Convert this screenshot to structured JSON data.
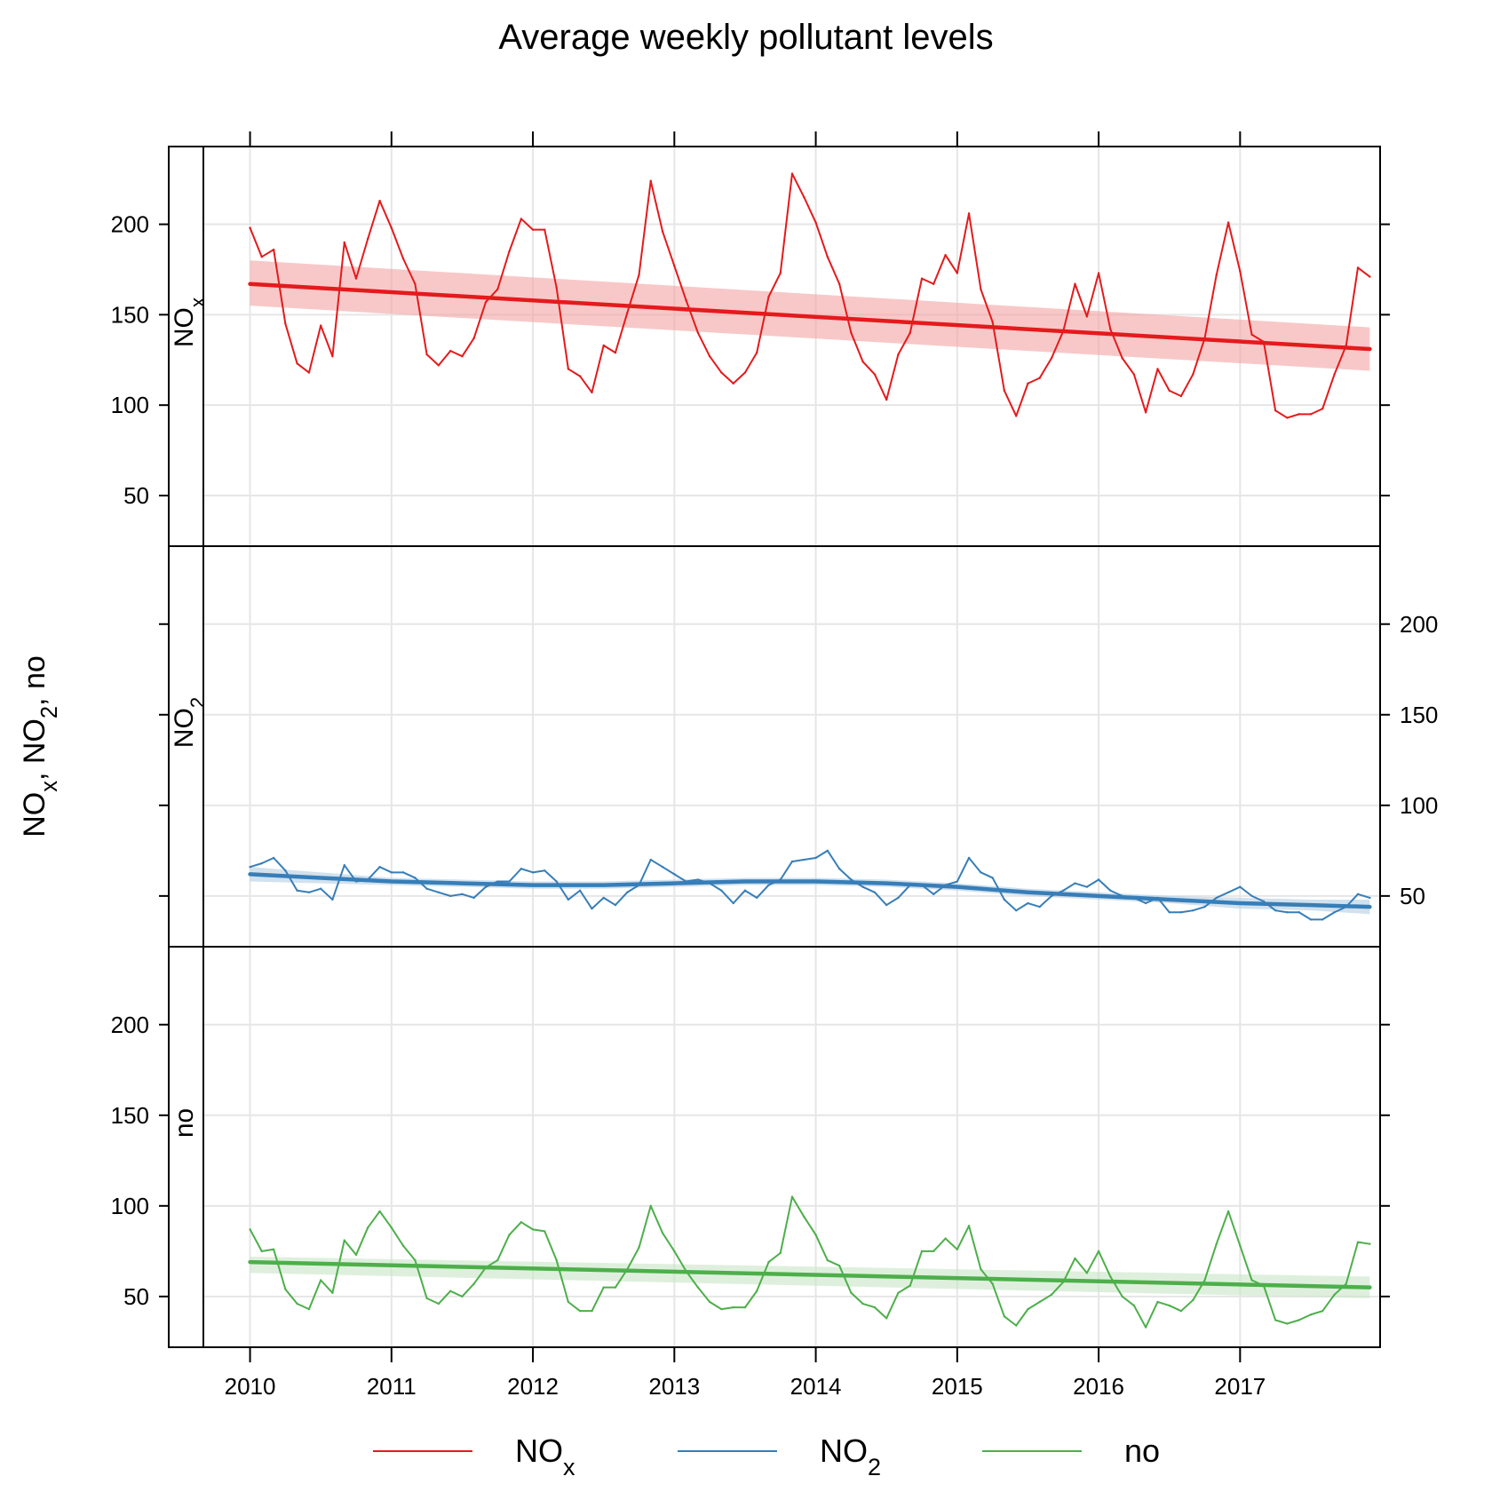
{
  "chart_data": {
    "type": "line",
    "title": "Average weekly pollutant levels",
    "ylabel": {
      "text": "NO{x}, NO{2}, no"
    },
    "xlim": [
      2009.67,
      2017.99
    ],
    "ylim": [
      22,
      243
    ],
    "x_ticks": [
      2010,
      2011,
      2012,
      2013,
      2014,
      2015,
      2016,
      2017
    ],
    "y_ticks": [
      50,
      100,
      150,
      200
    ],
    "grid": true,
    "legend_position": "bottom",
    "panels": [
      {
        "key": "nox",
        "strip_label": {
          "main": "NO",
          "sub": "x"
        },
        "y_axis_side": "left",
        "series": "nox"
      },
      {
        "key": "no2",
        "strip_label": {
          "main": "NO",
          "sub": "2"
        },
        "y_axis_side": "right",
        "series": "no2"
      },
      {
        "key": "no",
        "strip_label": {
          "main": "no",
          "sub": ""
        },
        "y_axis_side": "left",
        "series": "no"
      }
    ],
    "series": [
      {
        "key": "nox",
        "name": "NO",
        "name_sub": "x",
        "color": "#e41a1c",
        "band_color": "#f4a3a4",
        "x": [
          2010.0,
          2010.083,
          2010.167,
          2010.25,
          2010.333,
          2010.417,
          2010.5,
          2010.583,
          2010.667,
          2010.75,
          2010.833,
          2010.917,
          2011.0,
          2011.083,
          2011.167,
          2011.25,
          2011.333,
          2011.417,
          2011.5,
          2011.583,
          2011.667,
          2011.75,
          2011.833,
          2011.917,
          2012.0,
          2012.083,
          2012.167,
          2012.25,
          2012.333,
          2012.417,
          2012.5,
          2012.583,
          2012.667,
          2012.75,
          2012.833,
          2012.917,
          2013.0,
          2013.083,
          2013.167,
          2013.25,
          2013.333,
          2013.417,
          2013.5,
          2013.583,
          2013.667,
          2013.75,
          2013.833,
          2013.917,
          2014.0,
          2014.083,
          2014.167,
          2014.25,
          2014.333,
          2014.417,
          2014.5,
          2014.583,
          2014.667,
          2014.75,
          2014.833,
          2014.917,
          2015.0,
          2015.083,
          2015.167,
          2015.25,
          2015.333,
          2015.417,
          2015.5,
          2015.583,
          2015.667,
          2015.75,
          2015.833,
          2015.917,
          2016.0,
          2016.083,
          2016.167,
          2016.25,
          2016.333,
          2016.417,
          2016.5,
          2016.583,
          2016.667,
          2016.75,
          2016.833,
          2016.917,
          2017.0,
          2017.083,
          2017.167,
          2017.25,
          2017.333,
          2017.417,
          2017.5,
          2017.583,
          2017.667,
          2017.75,
          2017.833,
          2017.917
        ],
        "values": [
          198,
          182,
          186,
          145,
          123,
          118,
          144,
          127,
          190,
          170,
          192,
          213,
          198,
          181,
          167,
          128,
          122,
          130,
          127,
          137,
          157,
          164,
          185,
          203,
          197,
          197,
          165,
          120,
          116,
          107,
          133,
          129,
          151,
          172,
          224,
          196,
          177,
          158,
          140,
          127,
          118,
          112,
          118,
          129,
          160,
          173,
          228,
          215,
          201,
          182,
          167,
          140,
          124,
          117,
          103,
          128,
          140,
          170,
          167,
          183,
          173,
          206,
          164,
          146,
          108,
          94,
          112,
          115,
          126,
          141,
          167,
          149,
          173,
          142,
          126,
          117,
          96,
          120,
          108,
          105,
          117,
          137,
          172,
          201,
          174,
          139,
          135,
          97,
          93,
          95,
          95,
          98,
          117,
          133,
          176,
          171
        ],
        "trend": {
          "x": [
            2010.0,
            2017.917
          ],
          "values": [
            167,
            131
          ]
        },
        "band": {
          "x": [
            2010.0,
            2017.917
          ],
          "lower": [
            155,
            119
          ],
          "upper": [
            180,
            143
          ]
        }
      },
      {
        "key": "no2",
        "name": "NO",
        "name_sub": "2",
        "color": "#377eb8",
        "band_color": "#b3cde3",
        "x": [
          2010.0,
          2010.083,
          2010.167,
          2010.25,
          2010.333,
          2010.417,
          2010.5,
          2010.583,
          2010.667,
          2010.75,
          2010.833,
          2010.917,
          2011.0,
          2011.083,
          2011.167,
          2011.25,
          2011.333,
          2011.417,
          2011.5,
          2011.583,
          2011.667,
          2011.75,
          2011.833,
          2011.917,
          2012.0,
          2012.083,
          2012.167,
          2012.25,
          2012.333,
          2012.417,
          2012.5,
          2012.583,
          2012.667,
          2012.75,
          2012.833,
          2012.917,
          2013.0,
          2013.083,
          2013.167,
          2013.25,
          2013.333,
          2013.417,
          2013.5,
          2013.583,
          2013.667,
          2013.75,
          2013.833,
          2013.917,
          2014.0,
          2014.083,
          2014.167,
          2014.25,
          2014.333,
          2014.417,
          2014.5,
          2014.583,
          2014.667,
          2014.75,
          2014.833,
          2014.917,
          2015.0,
          2015.083,
          2015.167,
          2015.25,
          2015.333,
          2015.417,
          2015.5,
          2015.583,
          2015.667,
          2015.75,
          2015.833,
          2015.917,
          2016.0,
          2016.083,
          2016.167,
          2016.25,
          2016.333,
          2016.417,
          2016.5,
          2016.583,
          2016.667,
          2016.75,
          2016.833,
          2016.917,
          2017.0,
          2017.083,
          2017.167,
          2017.25,
          2017.333,
          2017.417,
          2017.5,
          2017.583,
          2017.667,
          2017.75,
          2017.833,
          2017.917
        ],
        "values": [
          66,
          68,
          71,
          64,
          53,
          52,
          54,
          48,
          67,
          58,
          59,
          66,
          63,
          63,
          60,
          54,
          52,
          50,
          51,
          49,
          55,
          58,
          58,
          65,
          63,
          64,
          58,
          48,
          53,
          43,
          49,
          45,
          52,
          56,
          70,
          66,
          62,
          58,
          59,
          57,
          53,
          46,
          53,
          49,
          56,
          59,
          69,
          70,
          71,
          75,
          65,
          59,
          55,
          52,
          45,
          49,
          56,
          56,
          51,
          56,
          58,
          71,
          63,
          60,
          48,
          42,
          46,
          44,
          50,
          53,
          57,
          55,
          59,
          53,
          50,
          49,
          46,
          49,
          41,
          41,
          42,
          44,
          49,
          52,
          55,
          50,
          47,
          42,
          41,
          41,
          37,
          37,
          41,
          44,
          51,
          49
        ],
        "trend": {
          "x": [
            2010.0,
            2010.5,
            2011.0,
            2011.5,
            2012.0,
            2012.5,
            2013.0,
            2013.5,
            2014.0,
            2014.5,
            2015.0,
            2015.5,
            2016.0,
            2016.5,
            2017.0,
            2017.5,
            2017.917
          ],
          "values": [
            62,
            60,
            58,
            57,
            56,
            56,
            57,
            58,
            58,
            57,
            55,
            52,
            50,
            48,
            46,
            45,
            44
          ]
        },
        "band": {
          "x": [
            2010.0,
            2010.5,
            2011.0,
            2011.5,
            2012.0,
            2012.5,
            2013.0,
            2013.5,
            2014.0,
            2014.5,
            2015.0,
            2015.5,
            2016.0,
            2016.5,
            2017.0,
            2017.5,
            2017.917
          ],
          "lower": [
            58,
            57,
            56,
            55,
            54,
            54,
            55,
            56,
            56,
            55,
            53,
            50,
            48,
            46,
            43,
            42,
            40
          ],
          "upper": [
            66,
            63,
            60,
            59,
            58,
            58,
            59,
            60,
            60,
            59,
            57,
            54,
            52,
            50,
            49,
            48,
            48
          ]
        }
      },
      {
        "key": "no",
        "name": "no",
        "name_sub": "",
        "color": "#4daf4a",
        "band_color": "#c8e6c6",
        "x": [
          2010.0,
          2010.083,
          2010.167,
          2010.25,
          2010.333,
          2010.417,
          2010.5,
          2010.583,
          2010.667,
          2010.75,
          2010.833,
          2010.917,
          2011.0,
          2011.083,
          2011.167,
          2011.25,
          2011.333,
          2011.417,
          2011.5,
          2011.583,
          2011.667,
          2011.75,
          2011.833,
          2011.917,
          2012.0,
          2012.083,
          2012.167,
          2012.25,
          2012.333,
          2012.417,
          2012.5,
          2012.583,
          2012.667,
          2012.75,
          2012.833,
          2012.917,
          2013.0,
          2013.083,
          2013.167,
          2013.25,
          2013.333,
          2013.417,
          2013.5,
          2013.583,
          2013.667,
          2013.75,
          2013.833,
          2013.917,
          2014.0,
          2014.083,
          2014.167,
          2014.25,
          2014.333,
          2014.417,
          2014.5,
          2014.583,
          2014.667,
          2014.75,
          2014.833,
          2014.917,
          2015.0,
          2015.083,
          2015.167,
          2015.25,
          2015.333,
          2015.417,
          2015.5,
          2015.583,
          2015.667,
          2015.75,
          2015.833,
          2015.917,
          2016.0,
          2016.083,
          2016.167,
          2016.25,
          2016.333,
          2016.417,
          2016.5,
          2016.583,
          2016.667,
          2016.75,
          2016.833,
          2016.917,
          2017.0,
          2017.083,
          2017.167,
          2017.25,
          2017.333,
          2017.417,
          2017.5,
          2017.583,
          2017.667,
          2017.75,
          2017.833,
          2017.917
        ],
        "values": [
          87,
          75,
          76,
          54,
          46,
          43,
          59,
          52,
          81,
          73,
          88,
          97,
          88,
          78,
          70,
          49,
          46,
          53,
          50,
          57,
          66,
          70,
          84,
          91,
          87,
          86,
          70,
          47,
          42,
          42,
          55,
          55,
          65,
          77,
          100,
          85,
          75,
          64,
          55,
          47,
          43,
          44,
          44,
          53,
          69,
          74,
          105,
          94,
          84,
          70,
          67,
          52,
          46,
          44,
          38,
          52,
          56,
          75,
          75,
          82,
          76,
          89,
          65,
          57,
          39,
          34,
          43,
          47,
          51,
          58,
          71,
          63,
          75,
          61,
          50,
          45,
          33,
          47,
          45,
          42,
          48,
          59,
          79,
          97,
          78,
          59,
          56,
          37,
          35,
          37,
          40,
          42,
          51,
          57,
          80,
          79
        ],
        "trend": {
          "x": [
            2010.0,
            2017.917
          ],
          "values": [
            69,
            55
          ]
        },
        "band": {
          "x": [
            2010.0,
            2017.917
          ],
          "lower": [
            63,
            49
          ],
          "upper": [
            72,
            61
          ]
        }
      }
    ]
  }
}
